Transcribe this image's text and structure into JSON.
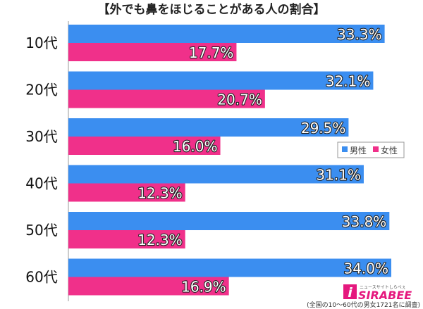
{
  "chart_data": {
    "type": "bar",
    "title": "【外でも鼻をほじることがある人の割合】",
    "categories": [
      "10代",
      "20代",
      "30代",
      "40代",
      "50代",
      "60代"
    ],
    "series": [
      {
        "name": "男性",
        "color": "#3b8ef0",
        "values": [
          33.3,
          32.1,
          29.5,
          31.1,
          33.8,
          34.0
        ]
      },
      {
        "name": "女性",
        "color": "#f0308a",
        "values": [
          17.7,
          20.7,
          16.0,
          12.3,
          12.3,
          16.9
        ]
      }
    ],
    "value_suffix": "%",
    "xlim": [
      0,
      36.3
    ],
    "legend_position": "right",
    "grid": false,
    "source_note": "(全国の10〜60代の男女1721名に調査)"
  },
  "logo": {
    "tagline": "ニュースサイトしらべぇ",
    "brand": "SIRABEE"
  }
}
